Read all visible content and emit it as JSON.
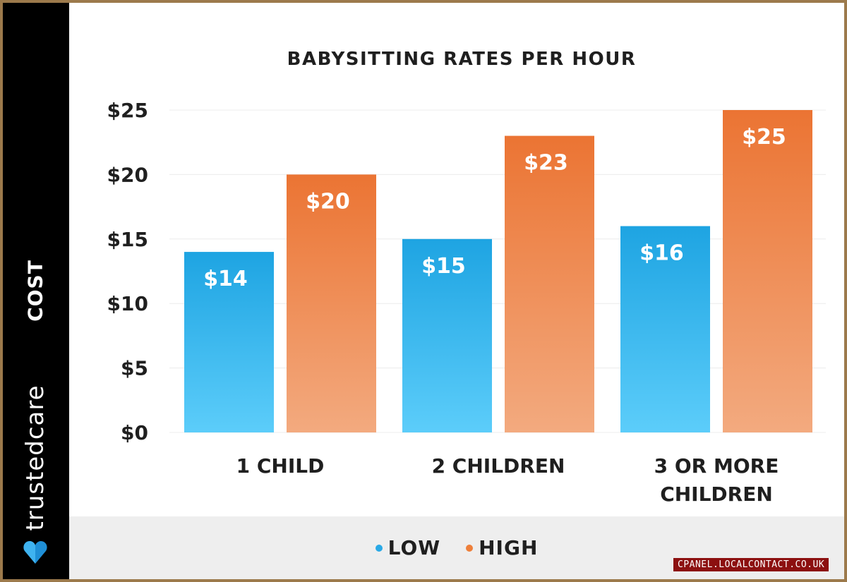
{
  "chart_data": {
    "type": "bar",
    "title": "BABYSITTING RATES PER HOUR",
    "ylabel": "COST",
    "xlabel": "",
    "categories": [
      [
        "1 CHILD"
      ],
      [
        "2 CHILDREN"
      ],
      [
        "3 OR MORE",
        "CHILDREN"
      ]
    ],
    "series": [
      {
        "name": "LOW",
        "values": [
          14,
          15,
          16
        ],
        "labels": [
          "$14",
          "$15",
          "$16"
        ],
        "color": "#29a9e6"
      },
      {
        "name": "HIGH",
        "values": [
          20,
          23,
          25
        ],
        "labels": [
          "$20",
          "$23",
          "$25"
        ],
        "color": "#ee7f3a"
      }
    ],
    "yticks": [
      0,
      5,
      10,
      15,
      20,
      25
    ],
    "ytick_labels": [
      "$0",
      "$5",
      "$10",
      "$15",
      "$20",
      "$25"
    ],
    "ylim": [
      0,
      25
    ],
    "grid": true,
    "legend_position": "bottom"
  },
  "brand": {
    "name": "trustedcare"
  },
  "watermark": {
    "text": "CPANEL.LOCALCONTACT.CO.UK"
  },
  "colors": {
    "low": "#29a9e6",
    "high": "#ee7f3a",
    "sidebar": "#000000",
    "frame": "#9c7a4c"
  }
}
